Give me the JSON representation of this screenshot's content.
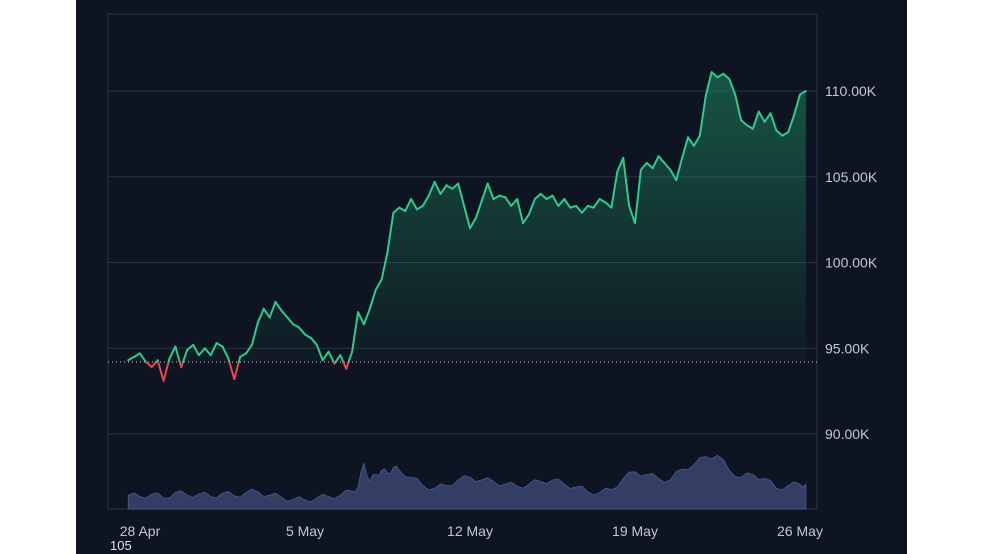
{
  "chart_data": {
    "type": "area",
    "title": "",
    "xlabel": "",
    "ylabel": "",
    "x_ticks": [
      "28 Apr",
      "5 May",
      "12 May",
      "19 May",
      "26 May"
    ],
    "x_range": [
      "2025-04-28",
      "2025-05-26"
    ],
    "y_ticks": [
      {
        "value": 90000,
        "label": "90.00K"
      },
      {
        "value": 95000,
        "label": "95.00K"
      },
      {
        "value": 100000,
        "label": "100.00K"
      },
      {
        "value": 105000,
        "label": "105.00K"
      },
      {
        "value": 110000,
        "label": "110.00K"
      }
    ],
    "ylim": [
      88000,
      114500
    ],
    "baseline_value": 94200,
    "grid": true,
    "colors": {
      "up": "#2ecc8a",
      "down": "#e5484d",
      "volume": "#3b4570",
      "grid": "#2a3344",
      "baseline": "#c9ced8"
    },
    "series": [
      {
        "values": [
          [
            "2025-04-27 12:00",
            94300
          ],
          [
            "2025-04-27 18:00",
            94500
          ],
          [
            "2025-04-28 00:00",
            94700
          ],
          [
            "2025-04-28 06:00",
            94200
          ],
          [
            "2025-04-28 12:00",
            93900
          ],
          [
            "2025-04-28 18:00",
            94300
          ],
          [
            "2025-04-29 00:00",
            93100
          ],
          [
            "2025-04-29 06:00",
            94400
          ],
          [
            "2025-04-29 12:00",
            95100
          ],
          [
            "2025-04-29 18:00",
            93900
          ],
          [
            "2025-04-30 00:00",
            94900
          ],
          [
            "2025-04-30 06:00",
            95200
          ],
          [
            "2025-04-30 12:00",
            94600
          ],
          [
            "2025-04-30 18:00",
            95000
          ],
          [
            "2025-05-01 00:00",
            94600
          ],
          [
            "2025-05-01 06:00",
            95300
          ],
          [
            "2025-05-01 12:00",
            95100
          ],
          [
            "2025-05-01 18:00",
            94400
          ],
          [
            "2025-05-02 00:00",
            93200
          ],
          [
            "2025-05-02 06:00",
            94500
          ],
          [
            "2025-05-02 12:00",
            94700
          ],
          [
            "2025-05-02 18:00",
            95200
          ],
          [
            "2025-05-03 00:00",
            96500
          ],
          [
            "2025-05-03 06:00",
            97300
          ],
          [
            "2025-05-03 12:00",
            96800
          ],
          [
            "2025-05-03 18:00",
            97700
          ],
          [
            "2025-05-04 00:00",
            97200
          ],
          [
            "2025-05-04 06:00",
            96800
          ],
          [
            "2025-05-04 12:00",
            96400
          ],
          [
            "2025-05-04 18:00",
            96200
          ],
          [
            "2025-05-05 00:00",
            95800
          ],
          [
            "2025-05-05 06:00",
            95600
          ],
          [
            "2025-05-05 12:00",
            95200
          ],
          [
            "2025-05-05 18:00",
            94300
          ],
          [
            "2025-05-06 00:00",
            94800
          ],
          [
            "2025-05-06 06:00",
            94100
          ],
          [
            "2025-05-06 12:00",
            94600
          ],
          [
            "2025-05-06 18:00",
            93800
          ],
          [
            "2025-05-07 00:00",
            94800
          ],
          [
            "2025-05-07 06:00",
            97100
          ],
          [
            "2025-05-07 12:00",
            96400
          ],
          [
            "2025-05-07 18:00",
            97300
          ],
          [
            "2025-05-08 00:00",
            98400
          ],
          [
            "2025-05-08 06:00",
            99000
          ],
          [
            "2025-05-08 12:00",
            100600
          ],
          [
            "2025-05-08 18:00",
            102900
          ],
          [
            "2025-05-09 00:00",
            103200
          ],
          [
            "2025-05-09 06:00",
            103000
          ],
          [
            "2025-05-09 12:00",
            103700
          ],
          [
            "2025-05-09 18:00",
            103100
          ],
          [
            "2025-05-10 00:00",
            103300
          ],
          [
            "2025-05-10 06:00",
            103900
          ],
          [
            "2025-05-10 12:00",
            104700
          ],
          [
            "2025-05-10 18:00",
            104000
          ],
          [
            "2025-05-11 00:00",
            104500
          ],
          [
            "2025-05-11 06:00",
            104300
          ],
          [
            "2025-05-11 12:00",
            104600
          ],
          [
            "2025-05-11 18:00",
            103300
          ],
          [
            "2025-05-12 00:00",
            102000
          ],
          [
            "2025-05-12 06:00",
            102600
          ],
          [
            "2025-05-12 12:00",
            103600
          ],
          [
            "2025-05-12 18:00",
            104600
          ],
          [
            "2025-05-13 00:00",
            103700
          ],
          [
            "2025-05-13 06:00",
            103900
          ],
          [
            "2025-05-13 12:00",
            103800
          ],
          [
            "2025-05-13 18:00",
            103300
          ],
          [
            "2025-05-14 00:00",
            103700
          ],
          [
            "2025-05-14 06:00",
            102300
          ],
          [
            "2025-05-14 12:00",
            102800
          ],
          [
            "2025-05-14 18:00",
            103700
          ],
          [
            "2025-05-15 00:00",
            104000
          ],
          [
            "2025-05-15 06:00",
            103700
          ],
          [
            "2025-05-15 12:00",
            103900
          ],
          [
            "2025-05-15 18:00",
            103300
          ],
          [
            "2025-05-16 00:00",
            103700
          ],
          [
            "2025-05-16 06:00",
            103200
          ],
          [
            "2025-05-16 12:00",
            103300
          ],
          [
            "2025-05-16 18:00",
            102900
          ],
          [
            "2025-05-17 00:00",
            103300
          ],
          [
            "2025-05-17 06:00",
            103200
          ],
          [
            "2025-05-17 12:00",
            103700
          ],
          [
            "2025-05-17 18:00",
            103500
          ],
          [
            "2025-05-18 00:00",
            103200
          ],
          [
            "2025-05-18 06:00",
            105300
          ],
          [
            "2025-05-18 12:00",
            106100
          ],
          [
            "2025-05-18 18:00",
            103300
          ],
          [
            "2025-05-19 00:00",
            102300
          ],
          [
            "2025-05-19 06:00",
            105400
          ],
          [
            "2025-05-19 12:00",
            105800
          ],
          [
            "2025-05-19 18:00",
            105500
          ],
          [
            "2025-05-20 00:00",
            106200
          ],
          [
            "2025-05-20 06:00",
            105800
          ],
          [
            "2025-05-20 12:00",
            105400
          ],
          [
            "2025-05-20 18:00",
            104800
          ],
          [
            "2025-05-21 00:00",
            106100
          ],
          [
            "2025-05-21 06:00",
            107300
          ],
          [
            "2025-05-21 12:00",
            106800
          ],
          [
            "2025-05-21 18:00",
            107400
          ],
          [
            "2025-05-22 00:00",
            109700
          ],
          [
            "2025-05-22 06:00",
            111100
          ],
          [
            "2025-05-22 12:00",
            110800
          ],
          [
            "2025-05-22 18:00",
            111000
          ],
          [
            "2025-05-23 00:00",
            110700
          ],
          [
            "2025-05-23 06:00",
            109800
          ],
          [
            "2025-05-23 12:00",
            108300
          ],
          [
            "2025-05-23 18:00",
            108000
          ],
          [
            "2025-05-24 00:00",
            107800
          ],
          [
            "2025-05-24 06:00",
            108800
          ],
          [
            "2025-05-24 12:00",
            108200
          ],
          [
            "2025-05-24 18:00",
            108700
          ],
          [
            "2025-05-25 00:00",
            107700
          ],
          [
            "2025-05-25 06:00",
            107400
          ],
          [
            "2025-05-25 12:00",
            107600
          ],
          [
            "2025-05-25 18:00",
            108600
          ],
          [
            "2025-05-26 00:00",
            109800
          ],
          [
            "2025-05-26 06:00",
            110000
          ]
        ]
      },
      {
        "kind": "volume",
        "values": [
          [
            "2025-04-27 12:00",
            20
          ],
          [
            "2025-04-28 00:00",
            18
          ],
          [
            "2025-04-28 12:00",
            22
          ],
          [
            "2025-04-29 00:00",
            16
          ],
          [
            "2025-04-29 12:00",
            24
          ],
          [
            "2025-04-30 00:00",
            20
          ],
          [
            "2025-04-30 12:00",
            22
          ],
          [
            "2025-05-01 00:00",
            18
          ],
          [
            "2025-05-01 12:00",
            23
          ],
          [
            "2025-05-02 00:00",
            19
          ],
          [
            "2025-05-02 12:00",
            24
          ],
          [
            "2025-05-03 00:00",
            25
          ],
          [
            "2025-05-03 12:00",
            20
          ],
          [
            "2025-05-04 00:00",
            17
          ],
          [
            "2025-05-04 12:00",
            14
          ],
          [
            "2025-05-05 00:00",
            13
          ],
          [
            "2025-05-05 12:00",
            16
          ],
          [
            "2025-05-06 00:00",
            18
          ],
          [
            "2025-05-06 12:00",
            20
          ],
          [
            "2025-05-07 00:00",
            26
          ],
          [
            "2025-05-07 06:00",
            32
          ],
          [
            "2025-05-07 12:00",
            66
          ],
          [
            "2025-05-07 18:00",
            40
          ],
          [
            "2025-05-08 00:00",
            50
          ],
          [
            "2025-05-08 06:00",
            56
          ],
          [
            "2025-05-08 12:00",
            52
          ],
          [
            "2025-05-08 18:00",
            60
          ],
          [
            "2025-05-09 00:00",
            56
          ],
          [
            "2025-05-09 12:00",
            46
          ],
          [
            "2025-05-10 00:00",
            34
          ],
          [
            "2025-05-10 12:00",
            30
          ],
          [
            "2025-05-11 00:00",
            34
          ],
          [
            "2025-05-11 12:00",
            42
          ],
          [
            "2025-05-12 00:00",
            46
          ],
          [
            "2025-05-12 12:00",
            42
          ],
          [
            "2025-05-13 00:00",
            40
          ],
          [
            "2025-05-13 12:00",
            36
          ],
          [
            "2025-05-14 00:00",
            33
          ],
          [
            "2025-05-14 12:00",
            36
          ],
          [
            "2025-05-15 00:00",
            40
          ],
          [
            "2025-05-15 12:00",
            42
          ],
          [
            "2025-05-16 00:00",
            36
          ],
          [
            "2025-05-16 12:00",
            32
          ],
          [
            "2025-05-17 00:00",
            25
          ],
          [
            "2025-05-17 12:00",
            24
          ],
          [
            "2025-05-18 00:00",
            28
          ],
          [
            "2025-05-18 12:00",
            44
          ],
          [
            "2025-05-19 00:00",
            54
          ],
          [
            "2025-05-19 12:00",
            50
          ],
          [
            "2025-05-20 00:00",
            44
          ],
          [
            "2025-05-20 12:00",
            42
          ],
          [
            "2025-05-21 00:00",
            58
          ],
          [
            "2025-05-21 12:00",
            64
          ],
          [
            "2025-05-22 00:00",
            76
          ],
          [
            "2025-05-22 12:00",
            78
          ],
          [
            "2025-05-23 00:00",
            56
          ],
          [
            "2025-05-23 12:00",
            46
          ],
          [
            "2025-05-24 00:00",
            50
          ],
          [
            "2025-05-24 12:00",
            44
          ],
          [
            "2025-05-25 00:00",
            30
          ],
          [
            "2025-05-25 12:00",
            34
          ],
          [
            "2025-05-26 00:00",
            36
          ],
          [
            "2025-05-26 06:00",
            36
          ]
        ]
      }
    ]
  },
  "footer_note": "105"
}
